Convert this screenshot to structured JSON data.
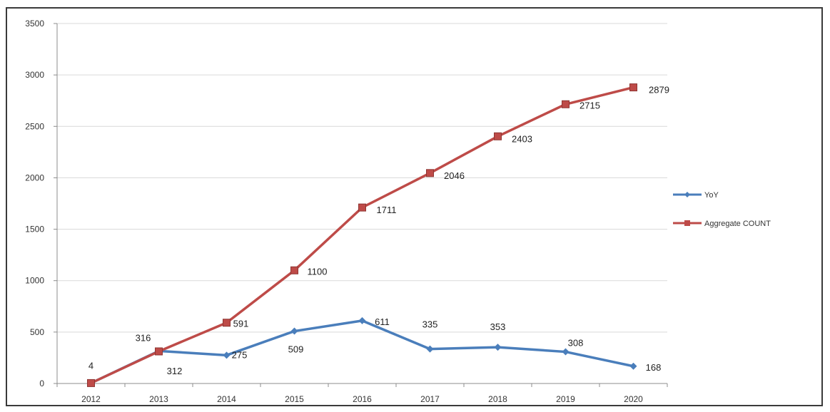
{
  "chart_data": {
    "type": "line",
    "categories": [
      "2012",
      "2013",
      "2014",
      "2015",
      "2016",
      "2017",
      "2018",
      "2019",
      "2020"
    ],
    "series": [
      {
        "name": "YoY",
        "color": "#4a7ebb",
        "marker": "diamond",
        "values": [
          4,
          316,
          275,
          509,
          611,
          335,
          353,
          308,
          168
        ],
        "labels": [
          "4",
          "316",
          "275",
          "509",
          "611",
          "335",
          "353",
          "308",
          "168"
        ]
      },
      {
        "name": "Aggregate COUNT",
        "color": "#be4b48",
        "marker": "square",
        "values": [
          4,
          312,
          591,
          1100,
          1711,
          2046,
          2403,
          2715,
          2879
        ],
        "labels": [
          "4",
          "312",
          "591",
          "1100",
          "1711",
          "2046",
          "2403",
          "2715",
          "2879"
        ]
      }
    ],
    "yticks": [
      "0",
      "500",
      "1000",
      "1500",
      "2000",
      "2500",
      "3000",
      "3500"
    ],
    "ylim": [
      0,
      3500
    ],
    "grid": true,
    "legend_position": "right",
    "title": "",
    "xlabel": "",
    "ylabel": ""
  }
}
